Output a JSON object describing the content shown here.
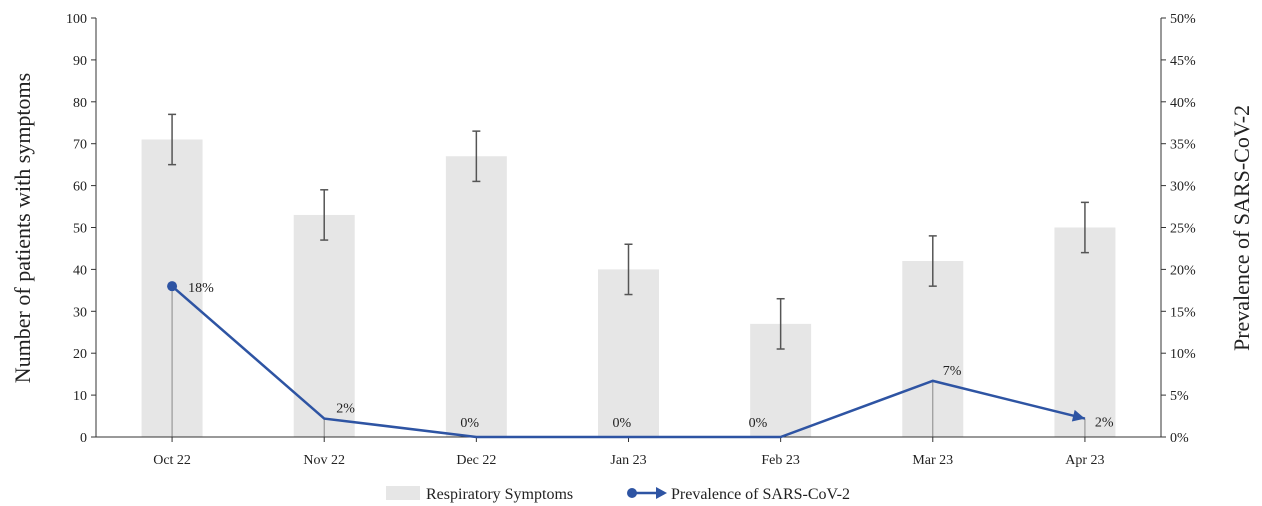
{
  "chart_data": {
    "type": "bar",
    "categories": [
      "Oct 22",
      "Nov 22",
      "Dec 22",
      "Jan 23",
      "Feb 23",
      "Mar 23",
      "Apr 23"
    ],
    "ylabel": "Number of patients with symptoms",
    "y2label": "Prevalence of SARS-CoV-2",
    "ylim": [
      0,
      100
    ],
    "y2lim": [
      0,
      50
    ],
    "y_ticks": [
      "0",
      "10",
      "20",
      "30",
      "40",
      "50",
      "60",
      "70",
      "80",
      "90",
      "100"
    ],
    "y2_ticks": [
      "0%",
      "5%",
      "10%",
      "15%",
      "20%",
      "25%",
      "30%",
      "35%",
      "40%",
      "45%",
      "50%"
    ],
    "grid": false,
    "legend_position": "bottom",
    "series": [
      {
        "name": "Respiratory Symptoms",
        "type": "bar",
        "axis": "left",
        "color": "#e6e6e6",
        "values": [
          71,
          53,
          67,
          40,
          27,
          42,
          50
        ],
        "error_low": [
          65,
          47,
          61,
          34,
          21,
          36,
          44
        ],
        "error_high": [
          77,
          59,
          73,
          46,
          33,
          48,
          56
        ]
      },
      {
        "name": "Prevalence of SARS-CoV-2",
        "type": "line",
        "axis": "right",
        "color": "#2e54a3",
        "values": [
          18,
          2.2,
          0,
          0,
          0,
          6.7,
          2.2
        ],
        "labels": [
          "18%",
          "2%",
          "0%",
          "0%",
          "0%",
          "7%",
          "2%"
        ]
      }
    ]
  }
}
